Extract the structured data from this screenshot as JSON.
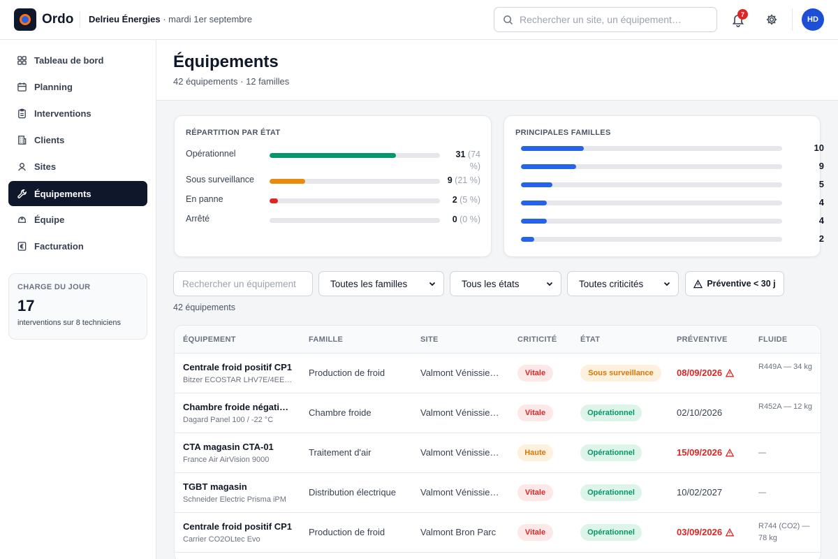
{
  "header": {
    "brand": "Ordo",
    "company": "Delrieu Énergies",
    "date": " · mardi 1er septembre",
    "search_placeholder": "Rechercher un site, un équipement…",
    "notifications": "7",
    "avatar": "HD"
  },
  "sidebar": {
    "items": [
      {
        "label": "Tableau de bord",
        "icon": "dashboard-icon"
      },
      {
        "label": "Planning",
        "icon": "calendar-icon"
      },
      {
        "label": "Interventions",
        "icon": "clipboard-icon"
      },
      {
        "label": "Clients",
        "icon": "building-icon"
      },
      {
        "label": "Sites",
        "icon": "map-pin-icon"
      },
      {
        "label": "Équipements",
        "icon": "wrench-icon",
        "active": true
      },
      {
        "label": "Équipe",
        "icon": "hard-hat-icon"
      },
      {
        "label": "Facturation",
        "icon": "euro-icon"
      }
    ],
    "charge": {
      "title": "CHARGE DU JOUR",
      "value": "17",
      "subtitle": "interventions sur 8 techniciens"
    }
  },
  "page": {
    "title": "Équipements",
    "subtitle": "42 équipements · 12 familles"
  },
  "states_card": {
    "title": "RÉPARTITION PAR ÉTAT",
    "rows": [
      {
        "label": "Opérationnel",
        "count": "31",
        "pct": " (74 %)",
        "fraction": 0.74,
        "color": "#059669"
      },
      {
        "label": "Sous surveillance",
        "count": "9",
        "pct": " (21 %)",
        "fraction": 0.21,
        "color": "#ea8a0c"
      },
      {
        "label": "En panne",
        "count": "2",
        "pct": " (5 %)",
        "fraction": 0.05,
        "color": "#dc2626"
      },
      {
        "label": "Arrêté",
        "count": "0",
        "pct": " (0 %)",
        "fraction": 0,
        "color": "#9ca3af"
      }
    ]
  },
  "families_card": {
    "title": "PRINCIPALES FAMILLES",
    "rows": [
      {
        "value": "10",
        "fraction": 0.24
      },
      {
        "value": "9",
        "fraction": 0.21
      },
      {
        "value": "5",
        "fraction": 0.12
      },
      {
        "value": "4",
        "fraction": 0.1
      },
      {
        "value": "4",
        "fraction": 0.1
      },
      {
        "value": "2",
        "fraction": 0.05
      }
    ]
  },
  "filters": {
    "search_placeholder": "Rechercher un équipement",
    "family": "Toutes les familles",
    "state": "Tous les états",
    "criticity": "Toutes criticités",
    "preventive": "Préventive < 30 j",
    "count": "42 équipements"
  },
  "table": {
    "headers": [
      "ÉQUIPEMENT",
      "FAMILLE",
      "SITE",
      "CRITICITÉ",
      "ÉTAT",
      "PRÉVENTIVE",
      "FLUIDE"
    ],
    "rows": [
      {
        "name": "Centrale froid positif CP1",
        "model": "Bitzer ECOSTAR LHV7E/4EE…",
        "family": "Production de froid",
        "site": "Valmont Vénissie…",
        "criticity": "Vitale",
        "state": "Sous surveillance",
        "preventive": "08/09/2026",
        "late": true,
        "fluid": "R449A — 34 kg"
      },
      {
        "name": "Chambre froide négati…",
        "model": "Dagard Panel 100 / -22 °C",
        "family": "Chambre froide",
        "site": "Valmont Vénissie…",
        "criticity": "Vitale",
        "state": "Opérationnel",
        "preventive": "02/10/2026",
        "late": false,
        "fluid": "R452A — 12 kg"
      },
      {
        "name": "CTA magasin CTA-01",
        "model": "France Air AirVision 9000",
        "family": "Traitement d'air",
        "site": "Valmont Vénissie…",
        "criticity": "Haute",
        "state": "Opérationnel",
        "preventive": "15/09/2026",
        "late": true,
        "fluid": "—"
      },
      {
        "name": "TGBT magasin",
        "model": "Schneider Electric Prisma iPM",
        "family": "Distribution électrique",
        "site": "Valmont Vénissie…",
        "criticity": "Vitale",
        "state": "Opérationnel",
        "preventive": "10/02/2027",
        "late": false,
        "fluid": "—"
      },
      {
        "name": "Centrale froid positif CP1",
        "model": "Carrier CO2OLtec Evo",
        "family": "Production de froid",
        "site": "Valmont Bron Parc",
        "criticity": "Vitale",
        "state": "Opérationnel",
        "preventive": "03/09/2026",
        "late": true,
        "fluid": "R744 (CO2) — 78 kg"
      }
    ]
  }
}
